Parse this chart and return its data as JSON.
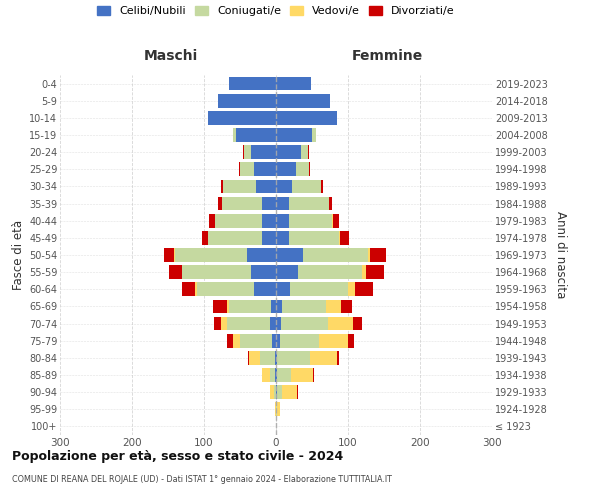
{
  "age_groups": [
    "100+",
    "95-99",
    "90-94",
    "85-89",
    "80-84",
    "75-79",
    "70-74",
    "65-69",
    "60-64",
    "55-59",
    "50-54",
    "45-49",
    "40-44",
    "35-39",
    "30-34",
    "25-29",
    "20-24",
    "15-19",
    "10-14",
    "5-9",
    "0-4"
  ],
  "birth_years": [
    "≤ 1923",
    "1924-1928",
    "1929-1933",
    "1934-1938",
    "1939-1943",
    "1944-1948",
    "1949-1953",
    "1954-1958",
    "1959-1963",
    "1964-1968",
    "1969-1973",
    "1974-1978",
    "1979-1983",
    "1984-1988",
    "1989-1993",
    "1994-1998",
    "1999-2003",
    "2004-2008",
    "2009-2013",
    "2014-2018",
    "2019-2023"
  ],
  "maschi": {
    "celibi": [
      0,
      0,
      0,
      1,
      2,
      5,
      8,
      7,
      30,
      35,
      40,
      20,
      20,
      20,
      28,
      30,
      35,
      55,
      95,
      80,
      65
    ],
    "coniugati": [
      0,
      0,
      3,
      8,
      20,
      45,
      60,
      58,
      80,
      95,
      100,
      75,
      65,
      55,
      45,
      20,
      10,
      5,
      0,
      0,
      0
    ],
    "vedovi": [
      0,
      1,
      5,
      10,
      15,
      10,
      8,
      3,
      2,
      1,
      1,
      0,
      0,
      0,
      0,
      0,
      0,
      0,
      0,
      0,
      0
    ],
    "divorziati": [
      0,
      0,
      0,
      1,
      2,
      8,
      10,
      20,
      18,
      18,
      15,
      8,
      8,
      5,
      3,
      1,
      1,
      0,
      0,
      0,
      0
    ]
  },
  "femmine": {
    "nubili": [
      0,
      0,
      1,
      1,
      2,
      5,
      7,
      8,
      20,
      30,
      38,
      18,
      18,
      18,
      22,
      28,
      35,
      50,
      85,
      75,
      48
    ],
    "coniugate": [
      0,
      2,
      8,
      20,
      45,
      55,
      65,
      62,
      80,
      90,
      90,
      70,
      60,
      55,
      40,
      18,
      10,
      5,
      0,
      0,
      0
    ],
    "vedove": [
      0,
      4,
      20,
      30,
      38,
      40,
      35,
      20,
      10,
      5,
      3,
      1,
      1,
      0,
      0,
      0,
      0,
      0,
      0,
      0,
      0
    ],
    "divorziate": [
      0,
      0,
      1,
      2,
      3,
      8,
      12,
      15,
      25,
      25,
      22,
      12,
      8,
      5,
      3,
      1,
      1,
      0,
      0,
      0,
      0
    ]
  },
  "colors": {
    "celibi_nubili": "#4472C4",
    "coniugati": "#C5D9A0",
    "vedovi": "#FFD966",
    "divorziati": "#CC0000"
  },
  "xlim": 300,
  "title": "Popolazione per età, sesso e stato civile - 2024",
  "subtitle": "COMUNE DI REANA DEL ROJALE (UD) - Dati ISTAT 1° gennaio 2024 - Elaborazione TUTTITALIA.IT",
  "legend_labels": [
    "Celibi/Nubili",
    "Coniugati/e",
    "Vedovi/e",
    "Divorziati/e"
  ],
  "ylabel_left": "Fasce di età",
  "ylabel_right": "Anni di nascita",
  "maschi_label": "Maschi",
  "femmine_label": "Femmine"
}
